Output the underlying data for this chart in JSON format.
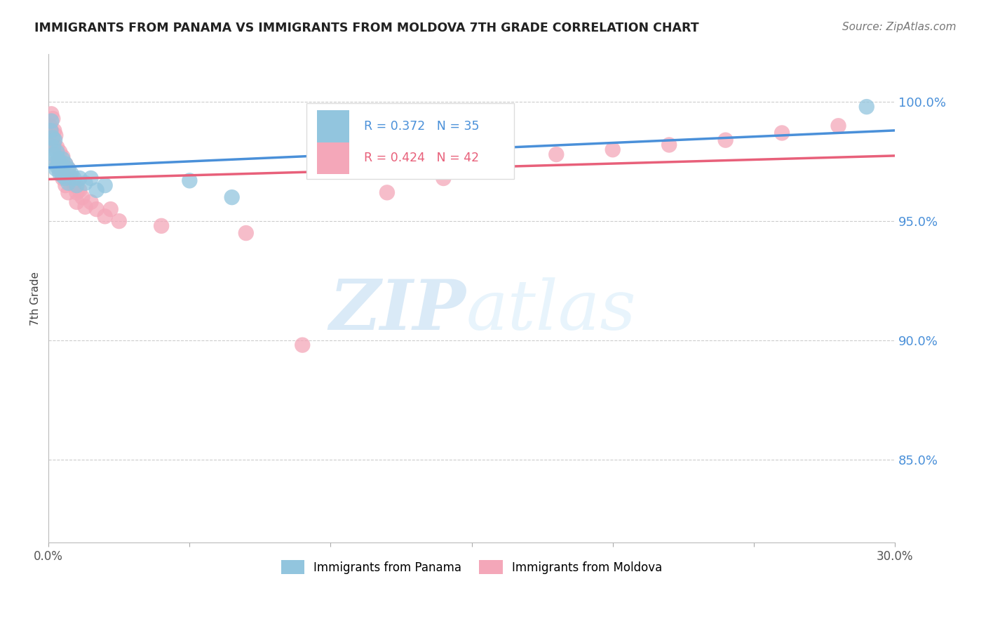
{
  "title": "IMMIGRANTS FROM PANAMA VS IMMIGRANTS FROM MOLDOVA 7TH GRADE CORRELATION CHART",
  "source": "Source: ZipAtlas.com",
  "ylabel": "7th Grade",
  "ylabel_right_ticks": [
    "100.0%",
    "95.0%",
    "90.0%",
    "85.0%"
  ],
  "ylabel_right_vals": [
    1.0,
    0.95,
    0.9,
    0.85
  ],
  "xmin": 0.0,
  "xmax": 0.3,
  "ymin": 0.815,
  "ymax": 1.02,
  "panama_color": "#92c5de",
  "moldova_color": "#f4a7b9",
  "trendline_panama_color": "#4a90d9",
  "trendline_moldova_color": "#e8607a",
  "panama_x": [
    0.0008,
    0.001,
    0.0012,
    0.0015,
    0.0018,
    0.002,
    0.0022,
    0.0025,
    0.003,
    0.003,
    0.0035,
    0.004,
    0.004,
    0.0045,
    0.005,
    0.005,
    0.006,
    0.006,
    0.007,
    0.007,
    0.008,
    0.009,
    0.01,
    0.011,
    0.013,
    0.015,
    0.017,
    0.02,
    0.05,
    0.065,
    0.16,
    0.29
  ],
  "panama_y": [
    0.988,
    0.992,
    0.975,
    0.985,
    0.981,
    0.978,
    0.984,
    0.972,
    0.979,
    0.973,
    0.976,
    0.975,
    0.97,
    0.972,
    0.976,
    0.969,
    0.974,
    0.968,
    0.972,
    0.966,
    0.97,
    0.968,
    0.965,
    0.968,
    0.966,
    0.968,
    0.963,
    0.965,
    0.967,
    0.96,
    0.975,
    0.998
  ],
  "moldova_x": [
    0.0005,
    0.001,
    0.001,
    0.0015,
    0.002,
    0.002,
    0.0025,
    0.003,
    0.003,
    0.004,
    0.004,
    0.005,
    0.005,
    0.006,
    0.006,
    0.007,
    0.007,
    0.008,
    0.009,
    0.01,
    0.01,
    0.011,
    0.012,
    0.013,
    0.015,
    0.017,
    0.02,
    0.022,
    0.025,
    0.04,
    0.07,
    0.09,
    0.12,
    0.14,
    0.15,
    0.16,
    0.18,
    0.2,
    0.22,
    0.24,
    0.26,
    0.28
  ],
  "moldova_y": [
    0.99,
    0.995,
    0.988,
    0.993,
    0.988,
    0.982,
    0.986,
    0.981,
    0.975,
    0.979,
    0.971,
    0.977,
    0.968,
    0.974,
    0.965,
    0.972,
    0.962,
    0.968,
    0.965,
    0.962,
    0.958,
    0.963,
    0.96,
    0.956,
    0.958,
    0.955,
    0.952,
    0.955,
    0.95,
    0.948,
    0.945,
    0.898,
    0.962,
    0.968,
    0.972,
    0.975,
    0.978,
    0.98,
    0.982,
    0.984,
    0.987,
    0.99
  ],
  "background_color": "#ffffff",
  "grid_color": "#cccccc",
  "watermark_zip": "ZIP",
  "watermark_atlas": "atlas",
  "watermark_color": "#daeaf7"
}
